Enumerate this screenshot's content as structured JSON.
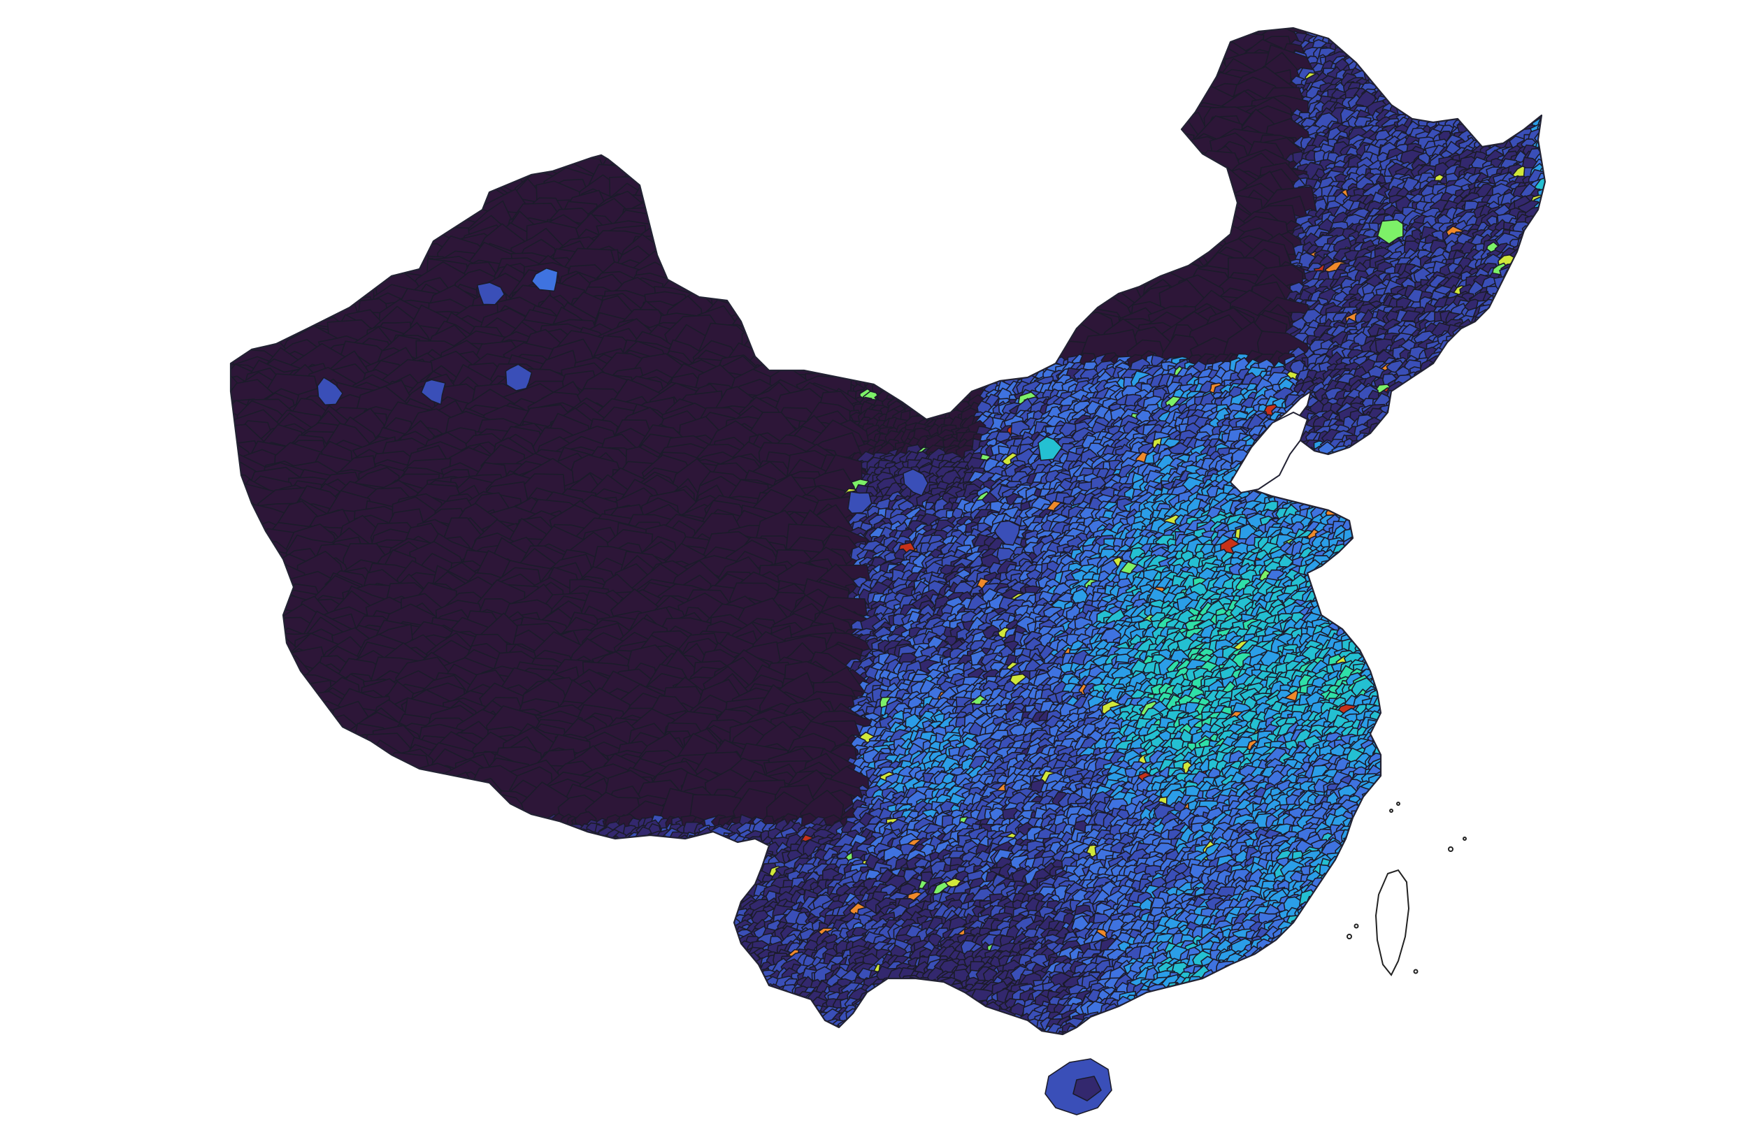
{
  "map": {
    "type": "choropleth",
    "colormap": "turbo",
    "colors": {
      "level_0": "#2d1638",
      "level_1": "#33286e",
      "level_2": "#3a4fb8",
      "level_3": "#3f73e0",
      "level_4": "#2b9ee8",
      "level_5": "#24c0d2",
      "level_6": "#2fe0a8",
      "level_7": "#7df168",
      "level_8": "#d1e83a",
      "level_9": "#f08a2a",
      "level_10": "#c8321a",
      "no_data": "#ffffff",
      "background": "#ffffff",
      "border": "#1b1b2a"
    }
  }
}
